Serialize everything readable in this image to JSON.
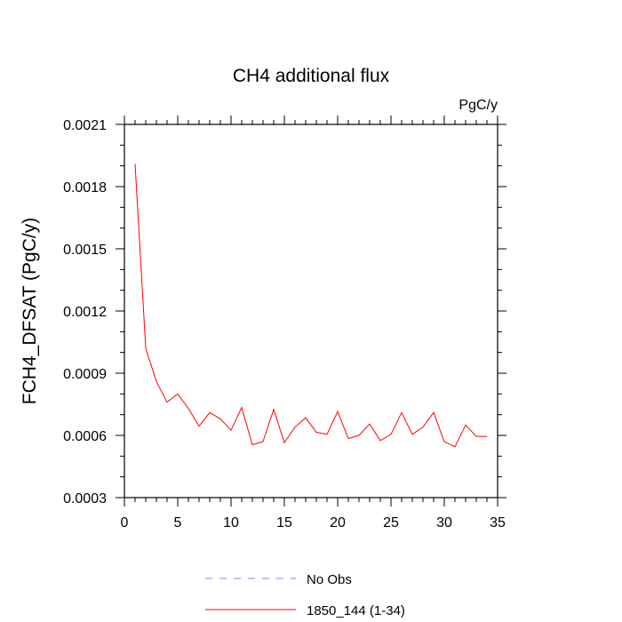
{
  "chart_data": {
    "type": "line",
    "title": "CH4 additional flux",
    "units_label": "PgC/y",
    "ylabel": "FCH4_DFSAT  (PgC/y)",
    "xlabel": "",
    "xlim": [
      0,
      35
    ],
    "ylim": [
      0.0003,
      0.0021
    ],
    "x_ticks": [
      0,
      5,
      10,
      15,
      20,
      25,
      30,
      35
    ],
    "x_tick_labels": [
      "0",
      "5",
      "10",
      "15",
      "20",
      "25",
      "30",
      "35"
    ],
    "y_ticks": [
      0.0003,
      0.0006,
      0.0009,
      0.0012,
      0.0015,
      0.0018,
      0.0021
    ],
    "y_tick_labels": [
      "0.0003",
      "0.0006",
      "0.0009",
      "0.0012",
      "0.0015",
      "0.0018",
      "0.0021"
    ],
    "grid": false,
    "legend_position": "bottom",
    "series": [
      {
        "name": "No Obs",
        "color": "#8080ff",
        "dash": "dashed",
        "x": [],
        "y": []
      },
      {
        "name": "1850_144 (1-34)",
        "color": "#ff0000",
        "dash": "solid",
        "x": [
          1,
          2,
          3,
          4,
          5,
          6,
          7,
          8,
          9,
          10,
          11,
          12,
          13,
          14,
          15,
          16,
          17,
          18,
          19,
          20,
          21,
          22,
          23,
          24,
          25,
          26,
          27,
          28,
          29,
          30,
          31,
          32,
          33,
          34
        ],
        "y": [
          0.00191,
          0.00102,
          0.00086,
          0.00076,
          0.0008,
          0.00073,
          0.000645,
          0.00071,
          0.00068,
          0.000625,
          0.000735,
          0.000555,
          0.00057,
          0.000725,
          0.000565,
          0.00064,
          0.000685,
          0.000615,
          0.000605,
          0.000715,
          0.000585,
          0.0006,
          0.000655,
          0.000575,
          0.000605,
          0.00071,
          0.000605,
          0.00064,
          0.00071,
          0.00057,
          0.000545,
          0.00065,
          0.000595,
          0.000595
        ]
      }
    ]
  }
}
